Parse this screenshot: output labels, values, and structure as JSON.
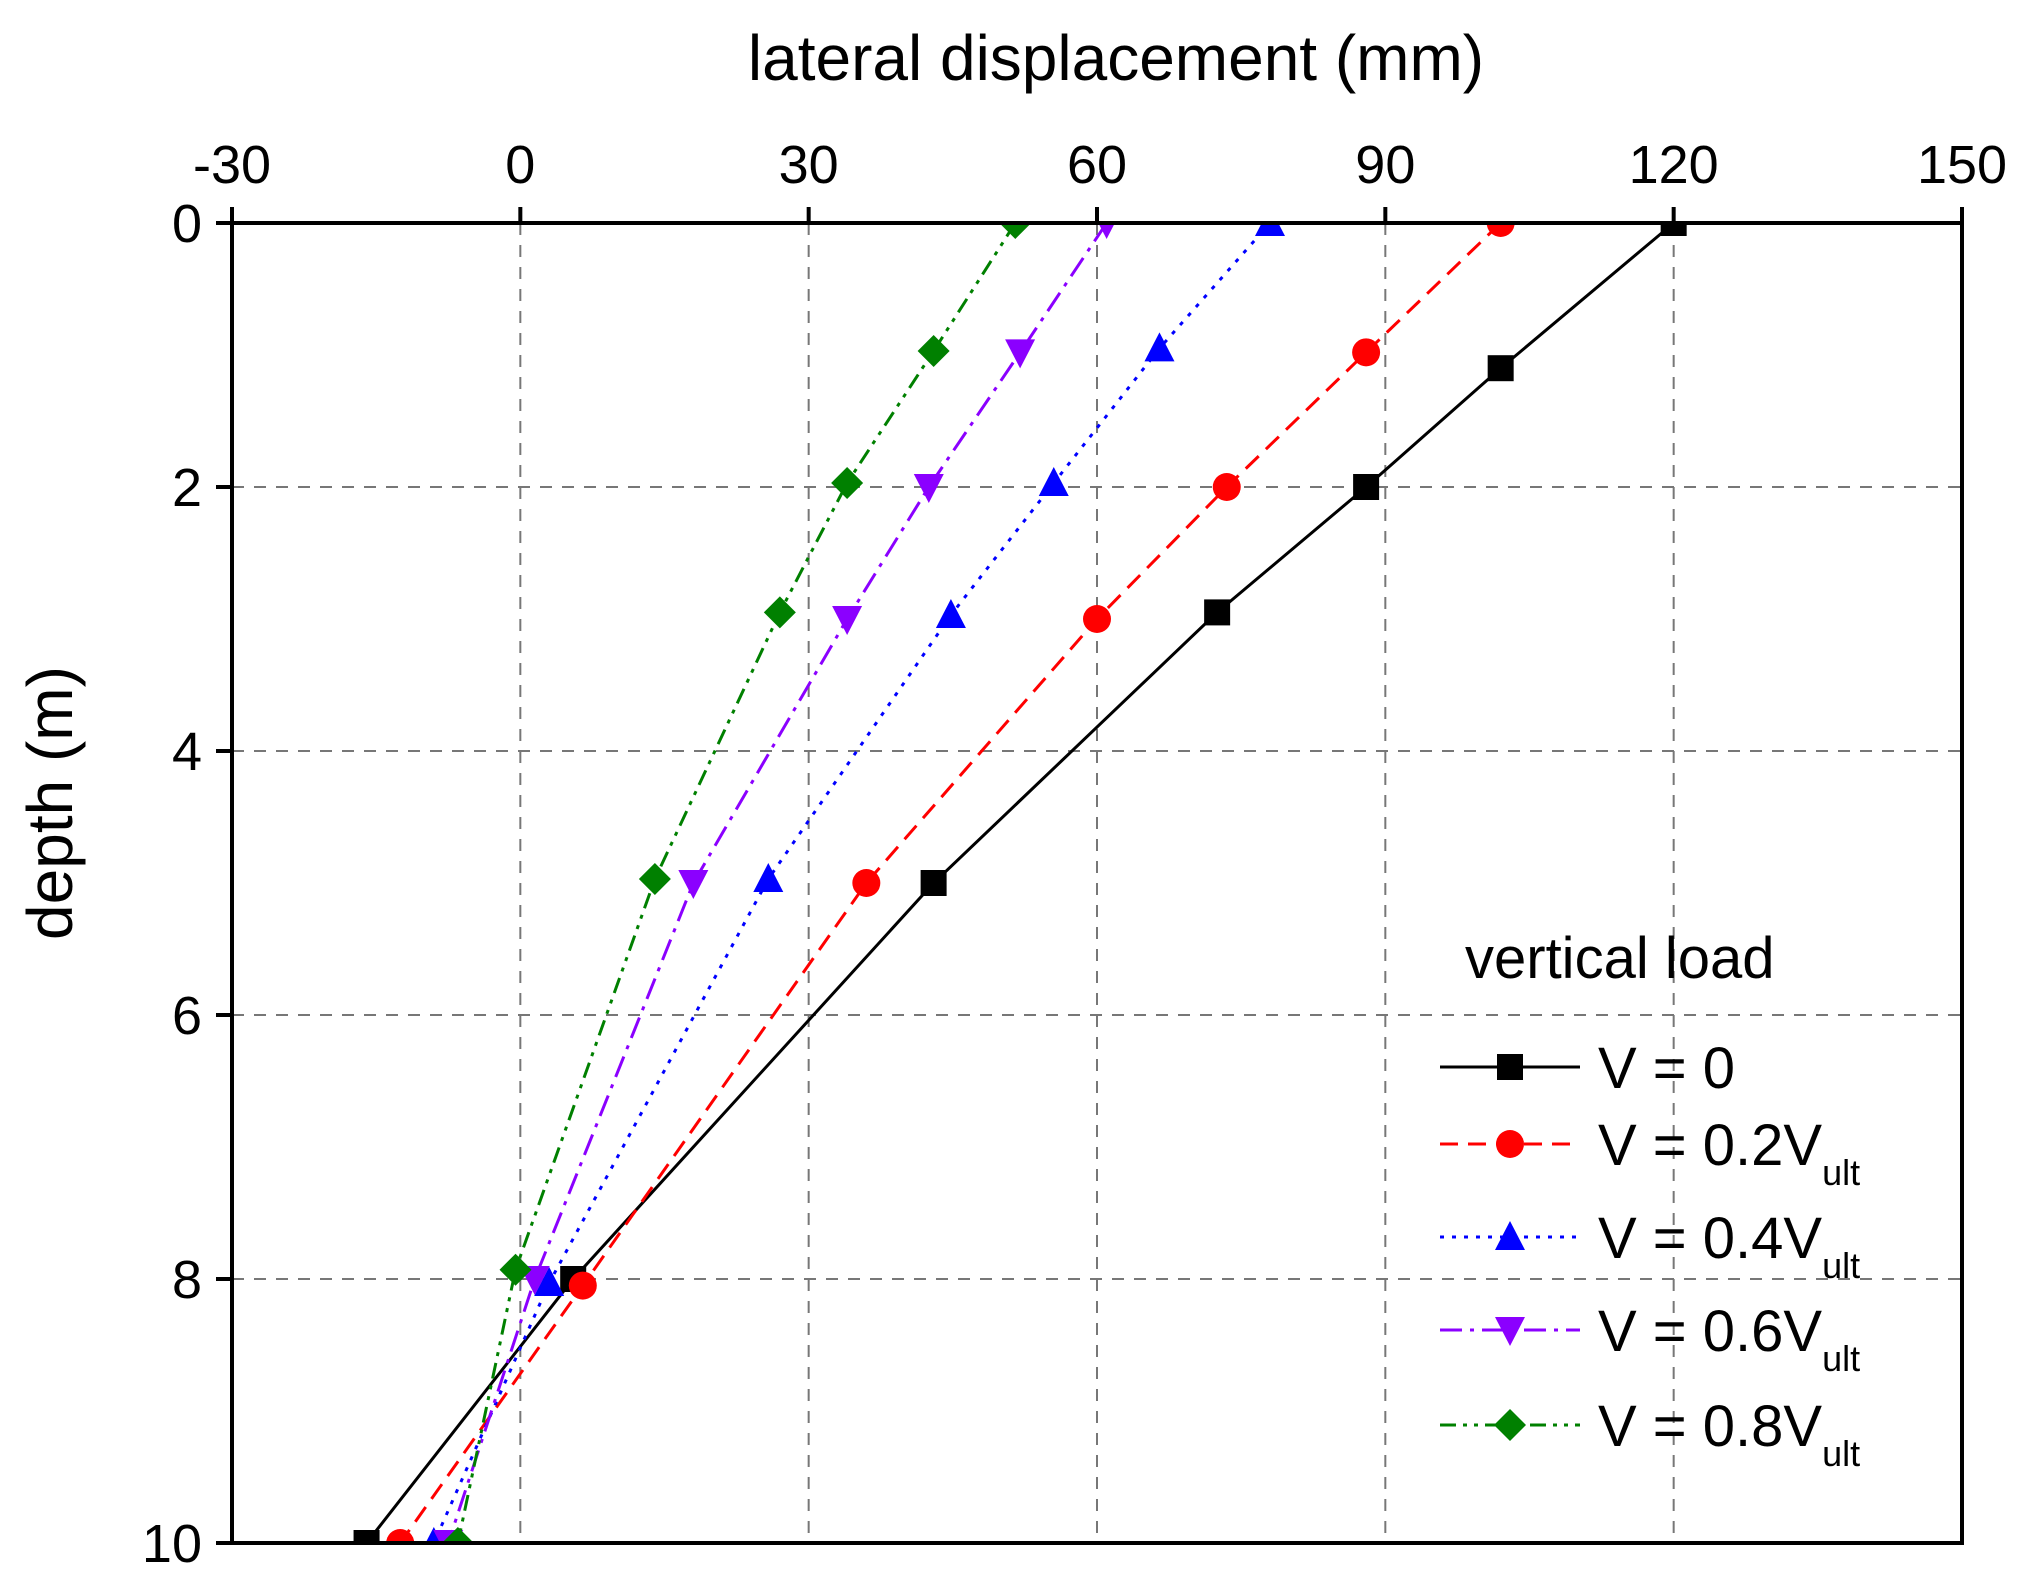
{
  "chart_data": {
    "type": "line",
    "title": "",
    "xlabel": "lateral displacement (mm)",
    "ylabel": "depth (m)",
    "xlim": [
      -30,
      150
    ],
    "ylim": [
      0,
      10
    ],
    "x_ticks": [
      "-30",
      "0",
      "30",
      "60",
      "90",
      "120",
      "150"
    ],
    "y_ticks": [
      "0",
      "2",
      "4",
      "6",
      "8",
      "10"
    ],
    "x_axis_position": "top",
    "y_axis_inverted": true,
    "grid": true,
    "legend": {
      "title": "vertical load",
      "position": "bottom-right"
    },
    "series": [
      {
        "name": "V = 0",
        "label_main": "V = 0",
        "label_sub": "",
        "color": "#000000",
        "dash": "solid",
        "marker": "square",
        "points": [
          [
            120,
            0
          ],
          [
            102,
            1.1
          ],
          [
            88,
            2
          ],
          [
            72.5,
            2.95
          ],
          [
            43,
            5
          ],
          [
            5.5,
            8
          ],
          [
            -16,
            10
          ]
        ]
      },
      {
        "name": "V = 0.2Vult",
        "label_main": "V = 0.2V",
        "label_sub": "ult",
        "color": "#ff0000",
        "dash": "dashed",
        "marker": "circle",
        "points": [
          [
            102,
            0
          ],
          [
            88,
            0.98
          ],
          [
            73.5,
            2
          ],
          [
            60,
            3
          ],
          [
            36,
            5
          ],
          [
            6.5,
            8.05
          ],
          [
            -12.5,
            10
          ]
        ]
      },
      {
        "name": "V = 0.4Vult",
        "label_main": "V = 0.4V",
        "label_sub": "ult",
        "color": "#0000ff",
        "dash": "dotted",
        "marker": "triangle-up",
        "points": [
          [
            78,
            0
          ],
          [
            66.5,
            0.95
          ],
          [
            55.5,
            1.97
          ],
          [
            44.8,
            2.97
          ],
          [
            25.8,
            4.97
          ],
          [
            3,
            8.03
          ],
          [
            -9,
            10
          ]
        ]
      },
      {
        "name": "V = 0.6Vult",
        "label_main": "V = 0.6V",
        "label_sub": "ult",
        "color": "#8b00ff",
        "dash": "dashdot",
        "marker": "triangle-down",
        "points": [
          [
            61,
            0
          ],
          [
            52,
            0.98
          ],
          [
            42.5,
            2
          ],
          [
            34,
            3
          ],
          [
            18,
            5
          ],
          [
            1.5,
            8
          ],
          [
            -7.5,
            10
          ]
        ]
      },
      {
        "name": "V = 0.8Vult",
        "label_main": "V = 0.8V",
        "label_sub": "ult",
        "color": "#008000",
        "dash": "dashdotdot",
        "marker": "diamond",
        "points": [
          [
            51.5,
            0
          ],
          [
            43,
            0.97
          ],
          [
            34,
            1.97
          ],
          [
            27,
            2.95
          ],
          [
            14,
            4.97
          ],
          [
            -0.5,
            7.93
          ],
          [
            -6.5,
            10
          ]
        ]
      }
    ]
  }
}
